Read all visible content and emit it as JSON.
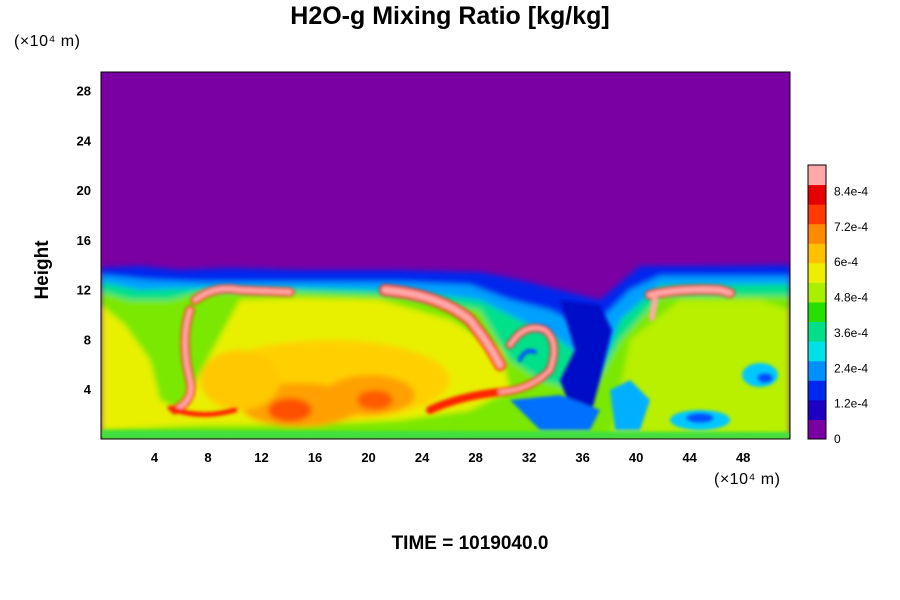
{
  "chart_data": {
    "type": "heatmap",
    "title": "H2O-g Mixing Ratio [kg/kg]",
    "ylabel": "Height",
    "x_unit": "(×10⁴ m)",
    "y_unit": "(×10⁴ m)",
    "time_label": "TIME = 1019040.0",
    "xlim": [
      0,
      51.5
    ],
    "ylim": [
      0,
      29.5
    ],
    "x_ticks": [
      "4",
      "8",
      "12",
      "16",
      "20",
      "24",
      "28",
      "32",
      "36",
      "40",
      "44",
      "48"
    ],
    "y_ticks": [
      "4",
      "8",
      "12",
      "16",
      "20",
      "24",
      "28"
    ],
    "colorbar": {
      "range": [
        0,
        0.00093
      ],
      "labels": [
        "0",
        "1.2e-4",
        "2.4e-4",
        "3.6e-4",
        "4.8e-4",
        "6e-4",
        "7.2e-4",
        "8.4e-4"
      ],
      "label_values": [
        0,
        0.00012,
        0.00024,
        0.00036,
        0.00048,
        0.0006,
        0.00072,
        0.00084
      ],
      "colors": [
        "#7a00a4",
        "#1e00c4",
        "#0028ee",
        "#0090ff",
        "#00e0e8",
        "#00e08a",
        "#28e000",
        "#a8f000",
        "#ecf000",
        "#ffc000",
        "#ff8a00",
        "#ff3a00",
        "#e60000",
        "#ffa8a8"
      ]
    },
    "fields": {
      "upper_layer_value": 0,
      "cloud_top_height": 13.5,
      "notes_visible": "dry upper layer; moist lower layer with convective plumes near x≈8 and x≈30"
    }
  }
}
